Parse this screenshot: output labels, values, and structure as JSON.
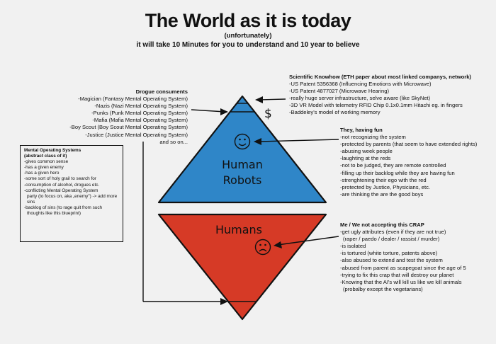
{
  "header": {
    "title": "The World as it is today",
    "subtitle": "(unfortunately)",
    "tagline": "it will take 10 Minutes for you to understand and 10 year to believe"
  },
  "drogue": {
    "heading": "Drogue consuments",
    "items": [
      "-Magician (Fantasy Mental Operating System)",
      "-Nazis (Nazi Mental Operating System)",
      "-Punks (Punk Mental Operating System)",
      "-Mafia (Mafia Mental Operating System)",
      "-Boy Scout (Boy Scout Mental Operating System)",
      "-Justice (Justice Mental Operating System)",
      "and so on..."
    ]
  },
  "mental_os": {
    "heading": "Mental Operating Systems",
    "subheading": "(abstract class of it)",
    "items": [
      "-gives common sense",
      "-has a given enemy",
      "-has a given hero",
      "-some sort of holy grail to search for",
      "-consumption of alcohol, drogues etc.",
      "-conflicting Mental Operating System",
      "  party (to focus on, aka „enemy\") -> add more sins",
      "-backlog of sins (to rage quit from such",
      "  thoughts like this blueprint)"
    ]
  },
  "scientific": {
    "heading": "Scientific Knowhow (ETH paper about most linked companys, network)",
    "items": [
      "-US Patent 5356368 (Influencing Emotions with Microwave)",
      "-US Patent 4877027 (Microwave Hearing)",
      "-really huge server infrastructure, selve aware (like SkyNet)",
      "-3D VR Model with telemetry RFID Chip 0.1x0.1mm Hitachi eg. in fingers",
      "-Baddeley's model of working memory"
    ]
  },
  "having_fun": {
    "heading": "They, having fun",
    "items": [
      "-not recognizing the system",
      "-protected by parents (that seem to have extended rights)",
      "-abusing week people",
      "-laughting at the reds",
      "-not to be judged, they are remote controlled",
      "-filling up their backlog while they are having fun",
      "-strenghtening their ego with the red",
      "-protected by Justice, Physicians, etc.",
      "-are thinking the are the good boys"
    ]
  },
  "not_accepting": {
    "heading": "Me / We not accepting this CRAP",
    "items": [
      "-get ugly attributes (even if they are not true)",
      "  (raper / paedo / dealer / rassist / murder)",
      "-is isolated",
      "-is tortured (white torture, patents above)",
      "-also abused to extend and test the system",
      "-abused from parent as scapegoat since the age of 5",
      "-trying to fix this crap that will destroy our planet",
      "-Knowing that the AI's will kill us like we kill animals",
      "  (probalby except the vegetarians)"
    ]
  },
  "diagram": {
    "robots_label_1": "Human",
    "robots_label_2": "Robots",
    "humans_label": "Humans",
    "dollar": "$",
    "colors": {
      "blue": "#2f86c8",
      "red": "#d63a26",
      "outline": "#111111"
    }
  }
}
